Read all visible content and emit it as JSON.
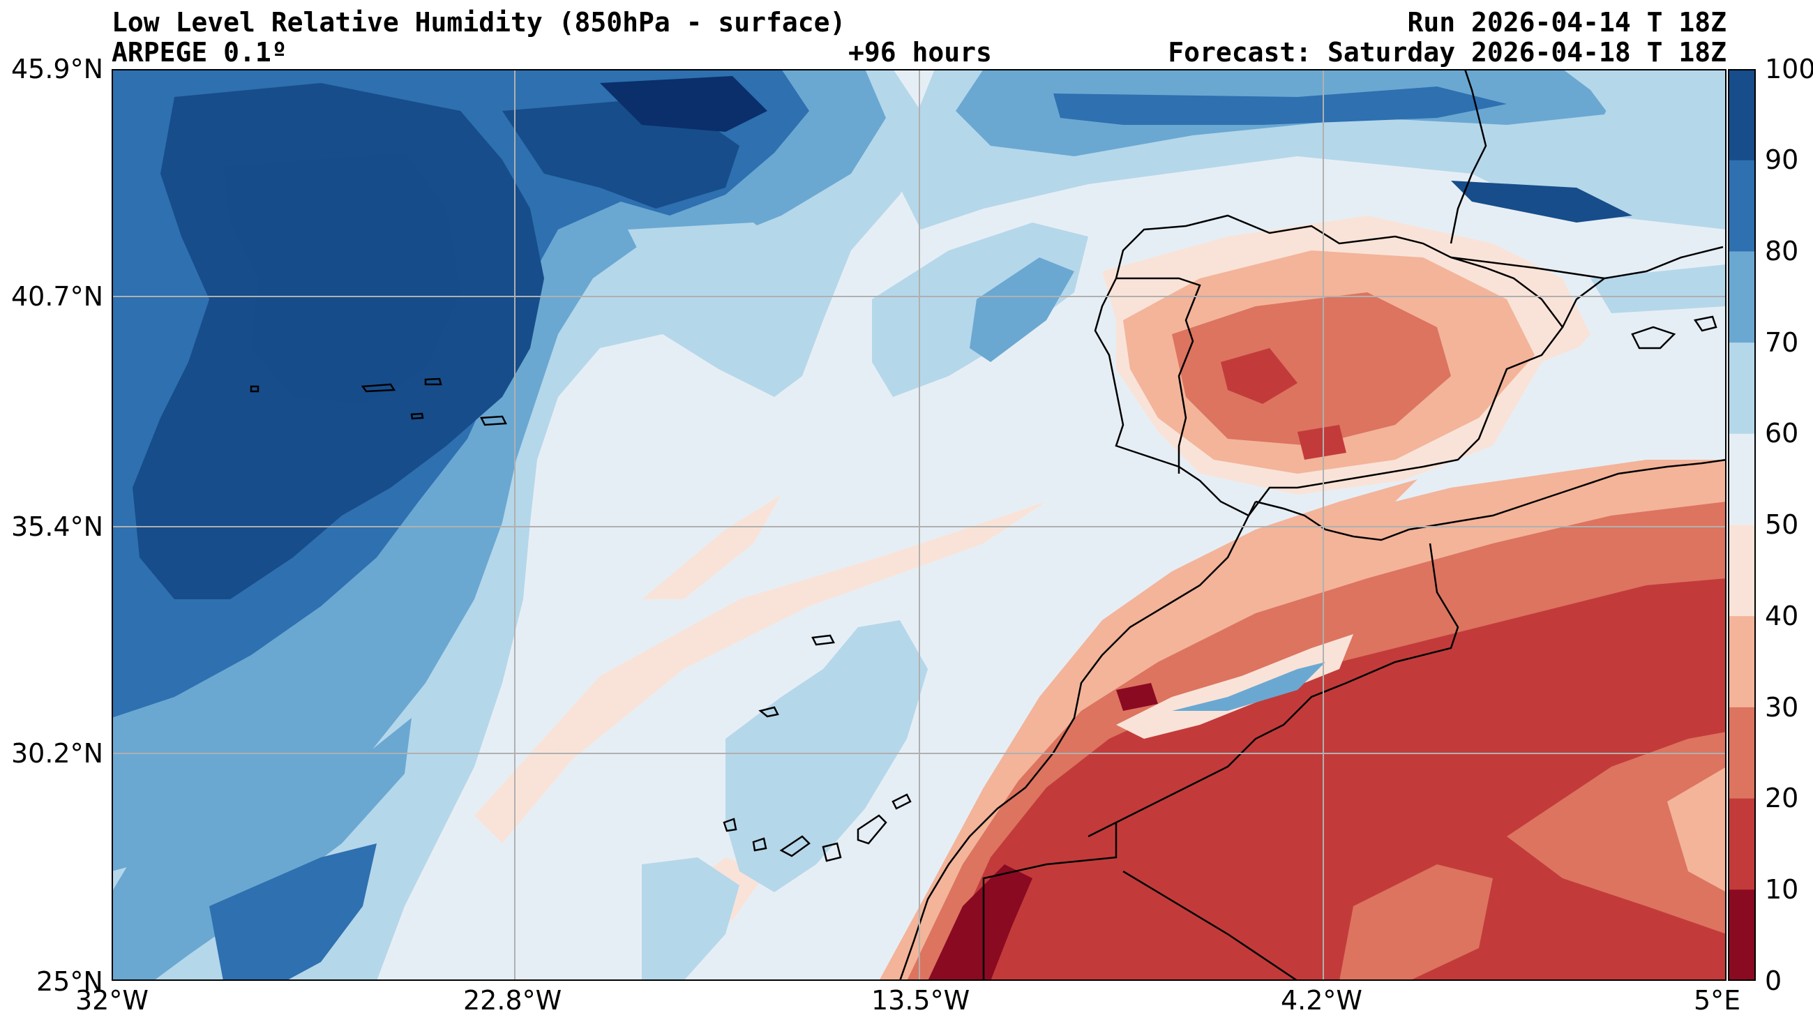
{
  "header": {
    "title": "Low Level Relative Humidity (850hPa - surface)",
    "model": "ARPEGE 0.1º",
    "lead": "+96 hours",
    "run": "Run 2026-04-14 T 18Z",
    "forecast": "Forecast: Saturday 2026-04-18 T 18Z"
  },
  "axes": {
    "lat_labels": [
      "45.9°N",
      "40.7°N",
      "35.4°N",
      "30.2°N",
      "25°N"
    ],
    "lon_labels": [
      "32°W",
      "22.8°W",
      "13.5°W",
      "4.2°W",
      "5°E"
    ]
  },
  "colorbar": {
    "labels": [
      "100",
      "90",
      "80",
      "70",
      "60",
      "50",
      "40",
      "30",
      "20",
      "10",
      "0"
    ],
    "colors": [
      "#0b2f6a",
      "#174d8a",
      "#2e70b0",
      "#6aa8d2",
      "#b5d7ea",
      "#e6eef5",
      "#f9e3d8",
      "#f3b49a",
      "#dc7460",
      "#c23b3a",
      "#8a0a22"
    ]
  },
  "map_regions": {
    "iberia": "Iberian Peninsula",
    "morocco": "Morocco",
    "azores": "Azores",
    "canaries": "Canary Islands",
    "madeira": "Madeira"
  }
}
